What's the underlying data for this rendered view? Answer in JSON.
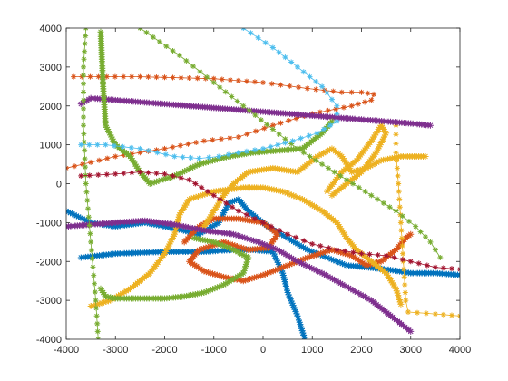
{
  "chart_data": {
    "type": "line",
    "title": "",
    "xlabel": "",
    "ylabel": "",
    "xlim": [
      -4000,
      4000
    ],
    "ylim": [
      -4000,
      4000
    ],
    "xticks": [
      -4000,
      -3000,
      -2000,
      -1000,
      0,
      1000,
      2000,
      3000,
      4000
    ],
    "yticks": [
      -4000,
      -3000,
      -2000,
      -1000,
      0,
      1000,
      2000,
      3000,
      4000
    ],
    "grid": false,
    "marker": "asterisk",
    "series": [
      {
        "color": "#0072BD",
        "width": 6,
        "points": [
          [
            -4000,
            -700
          ],
          [
            -3500,
            -1000
          ],
          [
            -3000,
            -1100
          ],
          [
            -2400,
            -1000
          ],
          [
            -1800,
            -1150
          ],
          [
            -1300,
            -1300
          ],
          [
            -900,
            -1000
          ],
          [
            -700,
            -500
          ],
          [
            -500,
            -400
          ],
          [
            -300,
            -700
          ],
          [
            100,
            -1100
          ],
          [
            500,
            -1400
          ],
          [
            900,
            -1700
          ],
          [
            1300,
            -1900
          ],
          [
            1700,
            -2100
          ],
          [
            2100,
            -2150
          ],
          [
            2500,
            -2200
          ],
          [
            3000,
            -2300
          ],
          [
            3500,
            -2300
          ],
          [
            4000,
            -2350
          ]
        ]
      },
      {
        "color": "#0072BD",
        "width": 6,
        "points": [
          [
            -3700,
            -1900
          ],
          [
            -3000,
            -1800
          ],
          [
            -2000,
            -1750
          ],
          [
            -1200,
            -1750
          ],
          [
            -600,
            -1700
          ],
          [
            -200,
            -1700
          ],
          [
            200,
            -1750
          ],
          [
            400,
            -2300
          ],
          [
            500,
            -2800
          ],
          [
            700,
            -3400
          ],
          [
            850,
            -4000
          ]
        ]
      },
      {
        "color": "#D95319",
        "width": 4,
        "points": [
          [
            -3850,
            2750
          ],
          [
            -2500,
            2750
          ],
          [
            -1000,
            2700
          ],
          [
            0,
            2600
          ],
          [
            900,
            2450
          ],
          [
            1600,
            2350
          ],
          [
            2000,
            2350
          ],
          [
            2250,
            2300
          ],
          [
            2200,
            2150
          ],
          [
            1800,
            2000
          ],
          [
            1000,
            1800
          ],
          [
            200,
            1500
          ],
          [
            -500,
            1200
          ],
          [
            -1200,
            1100
          ],
          [
            -2000,
            900
          ],
          [
            -3000,
            700
          ],
          [
            -4000,
            400
          ]
        ]
      },
      {
        "color": "#D95319",
        "width": 6,
        "points": [
          [
            -1600,
            -1500
          ],
          [
            -1300,
            -1100
          ],
          [
            -1000,
            -900
          ],
          [
            -500,
            -900
          ],
          [
            0,
            -1000
          ],
          [
            300,
            -1300
          ],
          [
            100,
            -1650
          ],
          [
            -300,
            -1700
          ],
          [
            -800,
            -1500
          ],
          [
            -1300,
            -1700
          ],
          [
            -1500,
            -2000
          ],
          [
            -1200,
            -2250
          ],
          [
            -800,
            -2400
          ],
          [
            -400,
            -2500
          ],
          [
            0,
            -2350
          ],
          [
            500,
            -2100
          ],
          [
            900,
            -1900
          ],
          [
            1400,
            -1700
          ],
          [
            1800,
            -1850
          ],
          [
            2100,
            -2100
          ],
          [
            2400,
            -2000
          ],
          [
            2700,
            -1700
          ],
          [
            2900,
            -1400
          ],
          [
            3000,
            -1300
          ]
        ]
      },
      {
        "color": "#EDB120",
        "width": 6,
        "points": [
          [
            -3500,
            -3150
          ],
          [
            -3100,
            -3000
          ],
          [
            -2700,
            -2700
          ],
          [
            -2300,
            -2300
          ],
          [
            -2000,
            -1800
          ],
          [
            -1800,
            -1300
          ],
          [
            -1700,
            -800
          ],
          [
            -1500,
            -400
          ],
          [
            -1000,
            -200
          ],
          [
            -400,
            -100
          ],
          [
            0,
            -100
          ],
          [
            400,
            -200
          ],
          [
            800,
            -400
          ],
          [
            1200,
            -700
          ],
          [
            1500,
            -1000
          ],
          [
            1700,
            -1400
          ],
          [
            1900,
            -1700
          ],
          [
            2200,
            -2000
          ],
          [
            2500,
            -2300
          ],
          [
            2700,
            -2700
          ],
          [
            2800,
            -3100
          ]
        ]
      },
      {
        "color": "#EDB120",
        "width": 6,
        "points": [
          [
            -1200,
            -1100
          ],
          [
            -1000,
            -700
          ],
          [
            -800,
            -300
          ],
          [
            -600,
            0
          ],
          [
            -300,
            300
          ],
          [
            200,
            400
          ],
          [
            700,
            300
          ],
          [
            1100,
            700
          ],
          [
            1400,
            900
          ],
          [
            1600,
            700
          ],
          [
            1800,
            300
          ],
          [
            2100,
            400
          ],
          [
            2400,
            600
          ],
          [
            2800,
            700
          ],
          [
            3300,
            700
          ]
        ]
      },
      {
        "color": "#EDB120",
        "width": 6,
        "points": [
          [
            1300,
            -200
          ],
          [
            1600,
            300
          ],
          [
            1900,
            600
          ],
          [
            2200,
            1100
          ],
          [
            2400,
            1500
          ],
          [
            2500,
            1300
          ],
          [
            2300,
            800
          ],
          [
            2000,
            300
          ],
          [
            1700,
            0
          ],
          [
            1400,
            -300
          ]
        ]
      },
      {
        "color": "#EDB120",
        "width": 3,
        "points": [
          [
            2700,
            1500
          ],
          [
            2700,
            800
          ],
          [
            2750,
            0
          ],
          [
            2800,
            -1000
          ],
          [
            2850,
            -2000
          ],
          [
            2900,
            -3000
          ],
          [
            2950,
            -3300
          ],
          [
            3500,
            -3350
          ],
          [
            4000,
            -3400
          ]
        ]
      },
      {
        "color": "#7E2F8E",
        "width": 8,
        "points": [
          [
            -3700,
            2050
          ],
          [
            -3500,
            2200
          ],
          [
            -3000,
            2150
          ],
          [
            -2000,
            2050
          ],
          [
            -1000,
            1950
          ],
          [
            0,
            1850
          ],
          [
            1000,
            1750
          ],
          [
            2000,
            1650
          ],
          [
            3000,
            1550
          ],
          [
            3400,
            1500
          ]
        ]
      },
      {
        "color": "#7E2F8E",
        "width": 8,
        "points": [
          [
            -4000,
            -1100
          ],
          [
            -3500,
            -1050
          ],
          [
            -3000,
            -1000
          ],
          [
            -2400,
            -950
          ],
          [
            -1800,
            -1050
          ],
          [
            -1200,
            -1200
          ],
          [
            -600,
            -1300
          ],
          [
            -100,
            -1500
          ],
          [
            300,
            -1700
          ],
          [
            700,
            -2000
          ],
          [
            1200,
            -2300
          ],
          [
            1700,
            -2650
          ],
          [
            2200,
            -3000
          ],
          [
            2700,
            -3500
          ],
          [
            3000,
            -3800
          ]
        ]
      },
      {
        "color": "#77AC30",
        "width": 3,
        "points": [
          [
            -3600,
            4000
          ],
          [
            -3650,
            3000
          ],
          [
            -3650,
            1500
          ],
          [
            -3600,
            0
          ],
          [
            -3500,
            -1500
          ],
          [
            -3400,
            -3000
          ],
          [
            -3350,
            -4000
          ]
        ]
      },
      {
        "color": "#77AC30",
        "width": 6,
        "points": [
          [
            -3300,
            3900
          ],
          [
            -3250,
            2500
          ],
          [
            -3200,
            1500
          ],
          [
            -3000,
            1000
          ],
          [
            -2700,
            700
          ],
          [
            -2500,
            300
          ],
          [
            -2300,
            0
          ],
          [
            -1800,
            200
          ],
          [
            -1300,
            500
          ],
          [
            -700,
            700
          ],
          [
            -200,
            800
          ],
          [
            300,
            850
          ],
          [
            800,
            900
          ],
          [
            1200,
            1300
          ],
          [
            1400,
            1600
          ]
        ]
      },
      {
        "color": "#77AC30",
        "width": 6,
        "points": [
          [
            -1400,
            -1400
          ],
          [
            -1000,
            -1500
          ],
          [
            -600,
            -1700
          ],
          [
            -300,
            -1900
          ],
          [
            -400,
            -2300
          ],
          [
            -800,
            -2600
          ],
          [
            -1200,
            -2800
          ],
          [
            -1600,
            -2900
          ],
          [
            -2000,
            -2950
          ],
          [
            -2500,
            -2950
          ],
          [
            -3000,
            -2950
          ],
          [
            -3200,
            -2900
          ],
          [
            -3300,
            -2700
          ]
        ]
      },
      {
        "color": "#77AC30",
        "width": 3,
        "points": [
          [
            -2500,
            4000
          ],
          [
            -1700,
            3300
          ],
          [
            -1000,
            2600
          ],
          [
            -400,
            2000
          ],
          [
            200,
            1400
          ],
          [
            700,
            900
          ],
          [
            1200,
            500
          ],
          [
            1700,
            100
          ],
          [
            2200,
            -300
          ],
          [
            2700,
            -700
          ],
          [
            3100,
            -1100
          ],
          [
            3400,
            -1500
          ],
          [
            3600,
            -1900
          ]
        ]
      },
      {
        "color": "#4DBEEE",
        "width": 3,
        "points": [
          [
            -400,
            4000
          ],
          [
            200,
            3500
          ],
          [
            700,
            3000
          ],
          [
            1200,
            2500
          ],
          [
            1500,
            2000
          ],
          [
            1500,
            1600
          ],
          [
            1100,
            1300
          ],
          [
            600,
            1100
          ],
          [
            0,
            900
          ],
          [
            -500,
            800
          ],
          [
            -900,
            700
          ],
          [
            -1300,
            650
          ],
          [
            -1800,
            700
          ],
          [
            -2500,
            900
          ],
          [
            -3200,
            1000
          ],
          [
            -3700,
            1000
          ]
        ]
      },
      {
        "color": "#A2142F",
        "width": 4,
        "points": [
          [
            -3700,
            200
          ],
          [
            -3000,
            250
          ],
          [
            -2500,
            300
          ],
          [
            -2000,
            250
          ],
          [
            -1500,
            100
          ],
          [
            -1000,
            -300
          ],
          [
            -500,
            -700
          ],
          [
            0,
            -1000
          ],
          [
            500,
            -1300
          ],
          [
            1000,
            -1550
          ],
          [
            1500,
            -1700
          ],
          [
            2000,
            -1800
          ],
          [
            2500,
            -1850
          ],
          [
            3000,
            -2000
          ],
          [
            3500,
            -2150
          ],
          [
            4000,
            -2200
          ]
        ]
      }
    ]
  }
}
